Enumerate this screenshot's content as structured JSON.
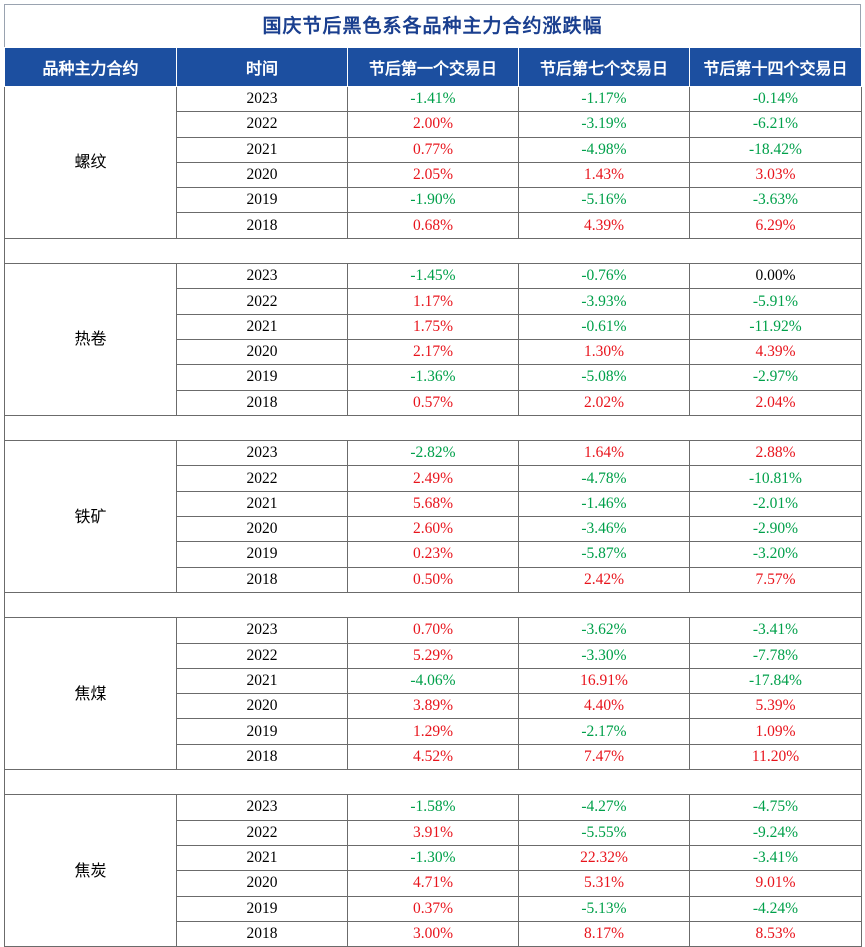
{
  "title": "国庆节后黑色系各品种主力合约涨跌幅",
  "headers": [
    "品种主力合约",
    "时间",
    "节后第一个交易日",
    "节后第七个交易日",
    "节后第十四个交易日"
  ],
  "colors": {
    "header_bg": "#1c4fa0",
    "title": "#1a3f8f",
    "negative": "#00a04a",
    "positive": "#e8141c"
  },
  "groups": [
    {
      "product": "螺纹",
      "rows": [
        {
          "year": "2023",
          "d1": "-1.41%",
          "d7": "-1.17%",
          "d14": "-0.14%"
        },
        {
          "year": "2022",
          "d1": "2.00%",
          "d7": "-3.19%",
          "d14": "-6.21%"
        },
        {
          "year": "2021",
          "d1": "0.77%",
          "d7": "-4.98%",
          "d14": "-18.42%"
        },
        {
          "year": "2020",
          "d1": "2.05%",
          "d7": "1.43%",
          "d14": "3.03%"
        },
        {
          "year": "2019",
          "d1": "-1.90%",
          "d7": "-5.16%",
          "d14": "-3.63%"
        },
        {
          "year": "2018",
          "d1": "0.68%",
          "d7": "4.39%",
          "d14": "6.29%"
        }
      ]
    },
    {
      "product": "热卷",
      "rows": [
        {
          "year": "2023",
          "d1": "-1.45%",
          "d7": "-0.76%",
          "d14": "0.00%"
        },
        {
          "year": "2022",
          "d1": "1.17%",
          "d7": "-3.93%",
          "d14": "-5.91%"
        },
        {
          "year": "2021",
          "d1": "1.75%",
          "d7": "-0.61%",
          "d14": "-11.92%"
        },
        {
          "year": "2020",
          "d1": "2.17%",
          "d7": "1.30%",
          "d14": "4.39%"
        },
        {
          "year": "2019",
          "d1": "-1.36%",
          "d7": "-5.08%",
          "d14": "-2.97%"
        },
        {
          "year": "2018",
          "d1": "0.57%",
          "d7": "2.02%",
          "d14": "2.04%"
        }
      ]
    },
    {
      "product": "铁矿",
      "rows": [
        {
          "year": "2023",
          "d1": "-2.82%",
          "d7": "1.64%",
          "d14": "2.88%"
        },
        {
          "year": "2022",
          "d1": "2.49%",
          "d7": "-4.78%",
          "d14": "-10.81%"
        },
        {
          "year": "2021",
          "d1": "5.68%",
          "d7": "-1.46%",
          "d14": "-2.01%"
        },
        {
          "year": "2020",
          "d1": "2.60%",
          "d7": "-3.46%",
          "d14": "-2.90%"
        },
        {
          "year": "2019",
          "d1": "0.23%",
          "d7": "-5.87%",
          "d14": "-3.20%"
        },
        {
          "year": "2018",
          "d1": "0.50%",
          "d7": "2.42%",
          "d14": "7.57%"
        }
      ]
    },
    {
      "product": "焦煤",
      "rows": [
        {
          "year": "2023",
          "d1": "0.70%",
          "d7": "-3.62%",
          "d14": "-3.41%"
        },
        {
          "year": "2022",
          "d1": "5.29%",
          "d7": "-3.30%",
          "d14": "-7.78%"
        },
        {
          "year": "2021",
          "d1": "-4.06%",
          "d7": "16.91%",
          "d14": "-17.84%"
        },
        {
          "year": "2020",
          "d1": "3.89%",
          "d7": "4.40%",
          "d14": "5.39%"
        },
        {
          "year": "2019",
          "d1": "1.29%",
          "d7": "-2.17%",
          "d14": "1.09%"
        },
        {
          "year": "2018",
          "d1": "4.52%",
          "d7": "7.47%",
          "d14": "11.20%"
        }
      ]
    },
    {
      "product": "焦炭",
      "rows": [
        {
          "year": "2023",
          "d1": "-1.58%",
          "d7": "-4.27%",
          "d14": "-4.75%"
        },
        {
          "year": "2022",
          "d1": "3.91%",
          "d7": "-5.55%",
          "d14": "-9.24%"
        },
        {
          "year": "2021",
          "d1": "-1.30%",
          "d7": "22.32%",
          "d14": "-3.41%"
        },
        {
          "year": "2020",
          "d1": "4.71%",
          "d7": "5.31%",
          "d14": "9.01%"
        },
        {
          "year": "2019",
          "d1": "0.37%",
          "d7": "-5.13%",
          "d14": "-4.24%"
        },
        {
          "year": "2018",
          "d1": "3.00%",
          "d7": "8.17%",
          "d14": "8.53%"
        }
      ]
    }
  ]
}
